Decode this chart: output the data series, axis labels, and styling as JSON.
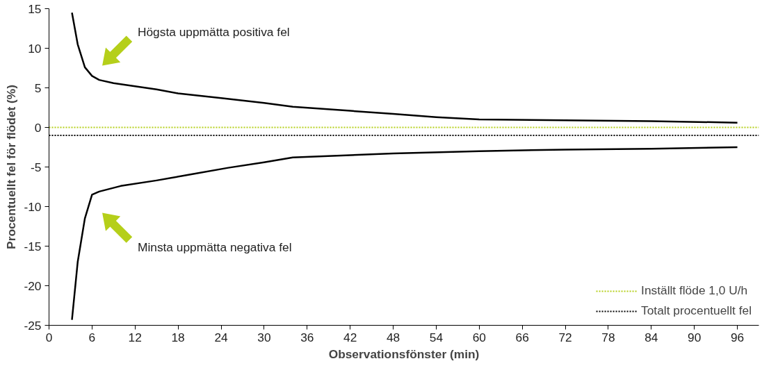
{
  "chart_data": {
    "type": "line",
    "xlabel": "Observationsfönster (min)",
    "ylabel": "Procentuellt fel för flödet (%)",
    "xlim": [
      0,
      99
    ],
    "ylim": [
      -25,
      15
    ],
    "xticks": [
      0,
      6,
      12,
      18,
      24,
      30,
      36,
      42,
      48,
      54,
      60,
      66,
      72,
      78,
      84,
      90,
      96
    ],
    "yticks": [
      -25,
      -20,
      -15,
      -10,
      -5,
      0,
      5,
      10,
      15
    ],
    "series": [
      {
        "color": "#000000",
        "x": [
          3.2,
          4,
          5,
          6,
          7,
          9,
          12,
          15,
          18,
          24,
          30,
          34,
          42,
          48,
          54,
          60,
          72,
          84,
          96
        ],
        "values": [
          14.5,
          10.5,
          7.6,
          6.5,
          6.0,
          5.6,
          5.2,
          4.8,
          4.3,
          3.7,
          3.1,
          2.6,
          2.1,
          1.7,
          1.3,
          1.0,
          0.9,
          0.8,
          0.6
        ]
      },
      {
        "color": "#000000",
        "x": [
          3.2,
          4,
          5,
          6,
          7,
          10,
          15,
          20,
          25,
          30,
          34,
          42,
          48,
          60,
          72,
          84,
          96
        ],
        "values": [
          -24.3,
          -17,
          -11.5,
          -8.5,
          -8.1,
          -7.4,
          -6.7,
          -5.9,
          -5.1,
          -4.4,
          -3.8,
          -3.5,
          -3.3,
          -3.0,
          -2.8,
          -2.7,
          -2.5
        ]
      }
    ],
    "ref_lines": [
      {
        "axis": "y",
        "value": 0,
        "label": "Inställt flöde 1,0 U/h",
        "color": "#b5cf1a",
        "line_style": "dotted"
      },
      {
        "axis": "y",
        "value": -1,
        "label": "Totalt procentuellt fel",
        "color": "#000000",
        "line_style": "dotted"
      }
    ],
    "annotations": [
      "Högsta uppmätta positiva fel",
      "Minsta uppmätta negativa fel"
    ],
    "legend": "bottom right",
    "grid": false,
    "line_style": "solid",
    "marker": "none"
  }
}
